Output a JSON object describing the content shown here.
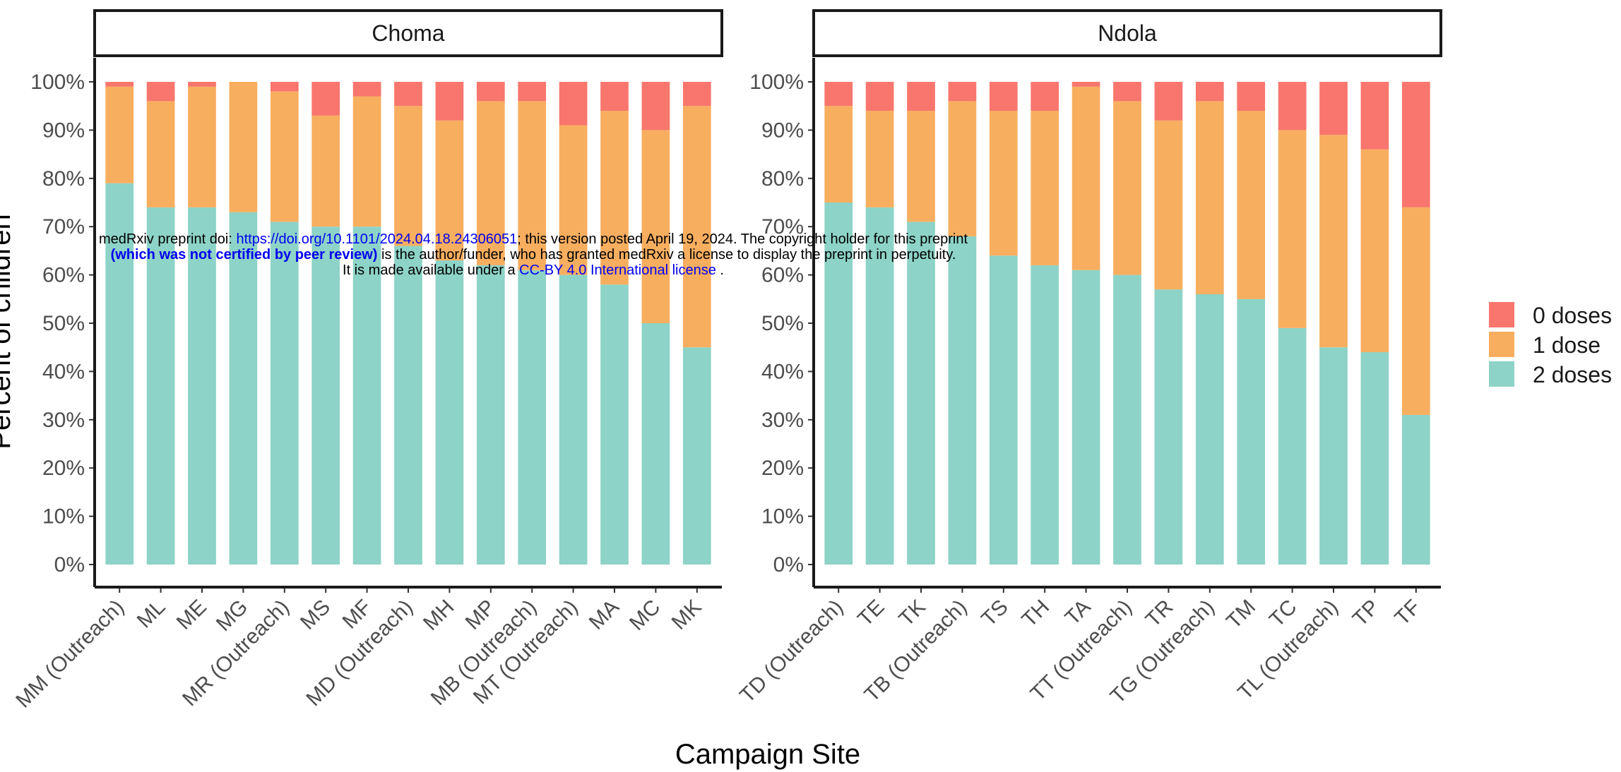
{
  "chart_data": {
    "type": "bar",
    "stacked": true,
    "xlabel": "Campaign Site",
    "ylabel": "Percent of children",
    "ylim": [
      0,
      100
    ],
    "y_ticks": [
      "0%",
      "10%",
      "20%",
      "30%",
      "40%",
      "50%",
      "60%",
      "70%",
      "80%",
      "90%",
      "100%"
    ],
    "legend": {
      "position": "right",
      "entries": [
        {
          "name": "0 doses",
          "color": "#f8766d"
        },
        {
          "name": "1 dose",
          "color": "#f8ae5f"
        },
        {
          "name": "2 doses",
          "color": "#8dd3c7"
        }
      ]
    },
    "panels": [
      {
        "title": "Choma",
        "categories": [
          "MM (Outreach)",
          "ML",
          "ME",
          "MG",
          "MR (Outreach)",
          "MS",
          "MF",
          "MD (Outreach)",
          "MH",
          "MP",
          "MB (Outreach)",
          "MT (Outreach)",
          "MA",
          "MC",
          "MK"
        ],
        "series": [
          {
            "name": "2 doses",
            "values": [
              79,
              74,
              74,
              73,
              71,
              70,
              70,
              66,
              63,
              62,
              61,
              60,
              58,
              50,
              45
            ]
          },
          {
            "name": "1 dose",
            "values": [
              20,
              22,
              25,
              27,
              27,
              23,
              27,
              29,
              29,
              34,
              35,
              31,
              36,
              40,
              50
            ]
          },
          {
            "name": "0 doses",
            "values": [
              1,
              4,
              1,
              0,
              2,
              7,
              3,
              5,
              8,
              4,
              4,
              9,
              6,
              10,
              5
            ]
          }
        ]
      },
      {
        "title": "Ndola",
        "categories": [
          "TD (Outreach)",
          "TE",
          "TK",
          "TB (Outreach)",
          "TS",
          "TH",
          "TA",
          "TT (Outreach)",
          "TR",
          "TG (Outreach)",
          "TM",
          "TC",
          "TL (Outreach)",
          "TP",
          "TF"
        ],
        "series": [
          {
            "name": "2 doses",
            "values": [
              75,
              74,
              71,
              68,
              64,
              62,
              61,
              60,
              57,
              56,
              55,
              49,
              45,
              44,
              31
            ]
          },
          {
            "name": "1 dose",
            "values": [
              20,
              20,
              23,
              28,
              30,
              32,
              38,
              36,
              35,
              40,
              39,
              41,
              44,
              42,
              43
            ]
          },
          {
            "name": "0 doses",
            "values": [
              5,
              6,
              6,
              4,
              6,
              6,
              1,
              4,
              8,
              4,
              6,
              10,
              11,
              14,
              26
            ]
          }
        ]
      }
    ]
  },
  "watermark": {
    "line1_prefix": "medRxiv preprint doi: ",
    "line1_link": "https://doi.org/10.1101/2024.04.18.24306051",
    "line1_suffix": "; this version posted April 19, 2024. The copyright holder for this preprint",
    "line2_bold": "(which was not certified by peer review)",
    "line2_rest": " is the author/funder, who has granted medRxiv a license to display the preprint in perpetuity.",
    "line3_prefix": "It is made available under a ",
    "line3_link": "CC-BY 4.0 International license",
    "line3_suffix": " ."
  }
}
